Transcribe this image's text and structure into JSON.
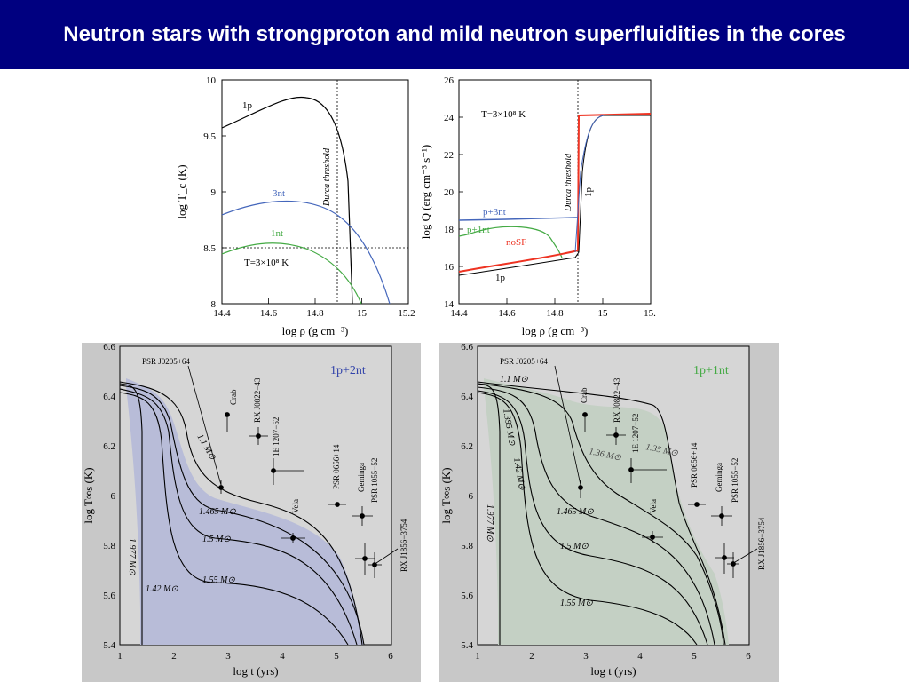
{
  "slide": {
    "title": "Neutron stars with strongproton and mild neutron superfluidities in the cores"
  },
  "colors": {
    "title_bg": "#000080",
    "blue": "#4466bb",
    "green": "#44aa44",
    "red": "#ee3322",
    "panel_gray": "#c8c8c8"
  },
  "tc_plot": {
    "xlabel": "log ρ (g cm⁻³)",
    "ylabel": "log T_c (K)",
    "x_ticks": [
      "14.4",
      "14.6",
      "14.8",
      "15",
      "15.2"
    ],
    "y_ticks": [
      "8",
      "8.5",
      "9",
      "9.5",
      "10"
    ],
    "labels": {
      "one_p": "1p",
      "three_nt": "3nt",
      "one_nt": "1nt",
      "durca": "Durca threshold",
      "temp": "T=3×10⁸ K"
    }
  },
  "q_plot": {
    "xlabel": "log ρ (g cm⁻³)",
    "ylabel": "log Q (erg cm⁻³ s⁻¹)",
    "x_ticks": [
      "14.4",
      "14.6",
      "14.8",
      "15",
      "15."
    ],
    "y_ticks": [
      "14",
      "16",
      "18",
      "20",
      "22",
      "24",
      "26"
    ],
    "labels": {
      "temp": "T=3×10⁸ K",
      "p3nt": "p+3nt",
      "p1nt": "p+1nt",
      "nosf": "noSF",
      "one_p_low": "1p",
      "one_p_up": "1p",
      "durca": "Durca threshold"
    }
  },
  "cool_left": {
    "title": "1p+2nt",
    "xlabel": "log t    (yrs)",
    "ylabel": "log T∞s (K)",
    "x_ticks": [
      "1",
      "2",
      "3",
      "4",
      "5",
      "6"
    ],
    "y_ticks": [
      "5.4",
      "5.6",
      "5.8",
      "6",
      "6.2",
      "6.4",
      "6.6"
    ],
    "mass_labels": {
      "m11": "1.1 M⊙",
      "m1465": "1.465 M⊙",
      "m15": "1.5 M⊙",
      "m155": "1.55 M⊙",
      "m142": "1.42 M⊙",
      "m1977": "1.977 M⊙"
    },
    "sources": {
      "psr0205": "PSR J0205+64",
      "crab": "Crab",
      "rx0822": "RX J0822−43",
      "e1207": "1E 1207−52",
      "vela": "Vela",
      "psr0656": "PSR 0656+14",
      "geminga": "Geminga",
      "psr1055": "PSR 1055−52",
      "rx1856": "RX J1856−3754"
    }
  },
  "cool_right": {
    "title": "1p+1nt",
    "xlabel": "log t    (yrs)",
    "ylabel": "log T∞s (K)",
    "x_ticks": [
      "1",
      "2",
      "3",
      "4",
      "5",
      "6"
    ],
    "y_ticks": [
      "5.4",
      "5.6",
      "5.8",
      "6",
      "6.2",
      "6.4",
      "6.6"
    ],
    "mass_labels": {
      "m11": "1.1 M⊙",
      "m1395": "1.395 M⊙",
      "m142": "1.42 M⊙",
      "m136": "1.36 M⊙",
      "m135": "1.35 M⊙",
      "m1465": "1.465 M⊙",
      "m15": "1.5 M⊙",
      "m155": "1.55 M⊙",
      "m1977": "1.977 M⊙"
    },
    "sources": {
      "psr0205": "PSR J0205+64",
      "crab": "Crab",
      "rx0822": "RX J0822−43",
      "e1207": "1E 1207−52",
      "vela": "Vela",
      "psr0656": "PSR 0656+14",
      "geminga": "Geminga",
      "psr1055": "PSR 1055−52",
      "rx1856": "RX J1856−3754"
    }
  }
}
